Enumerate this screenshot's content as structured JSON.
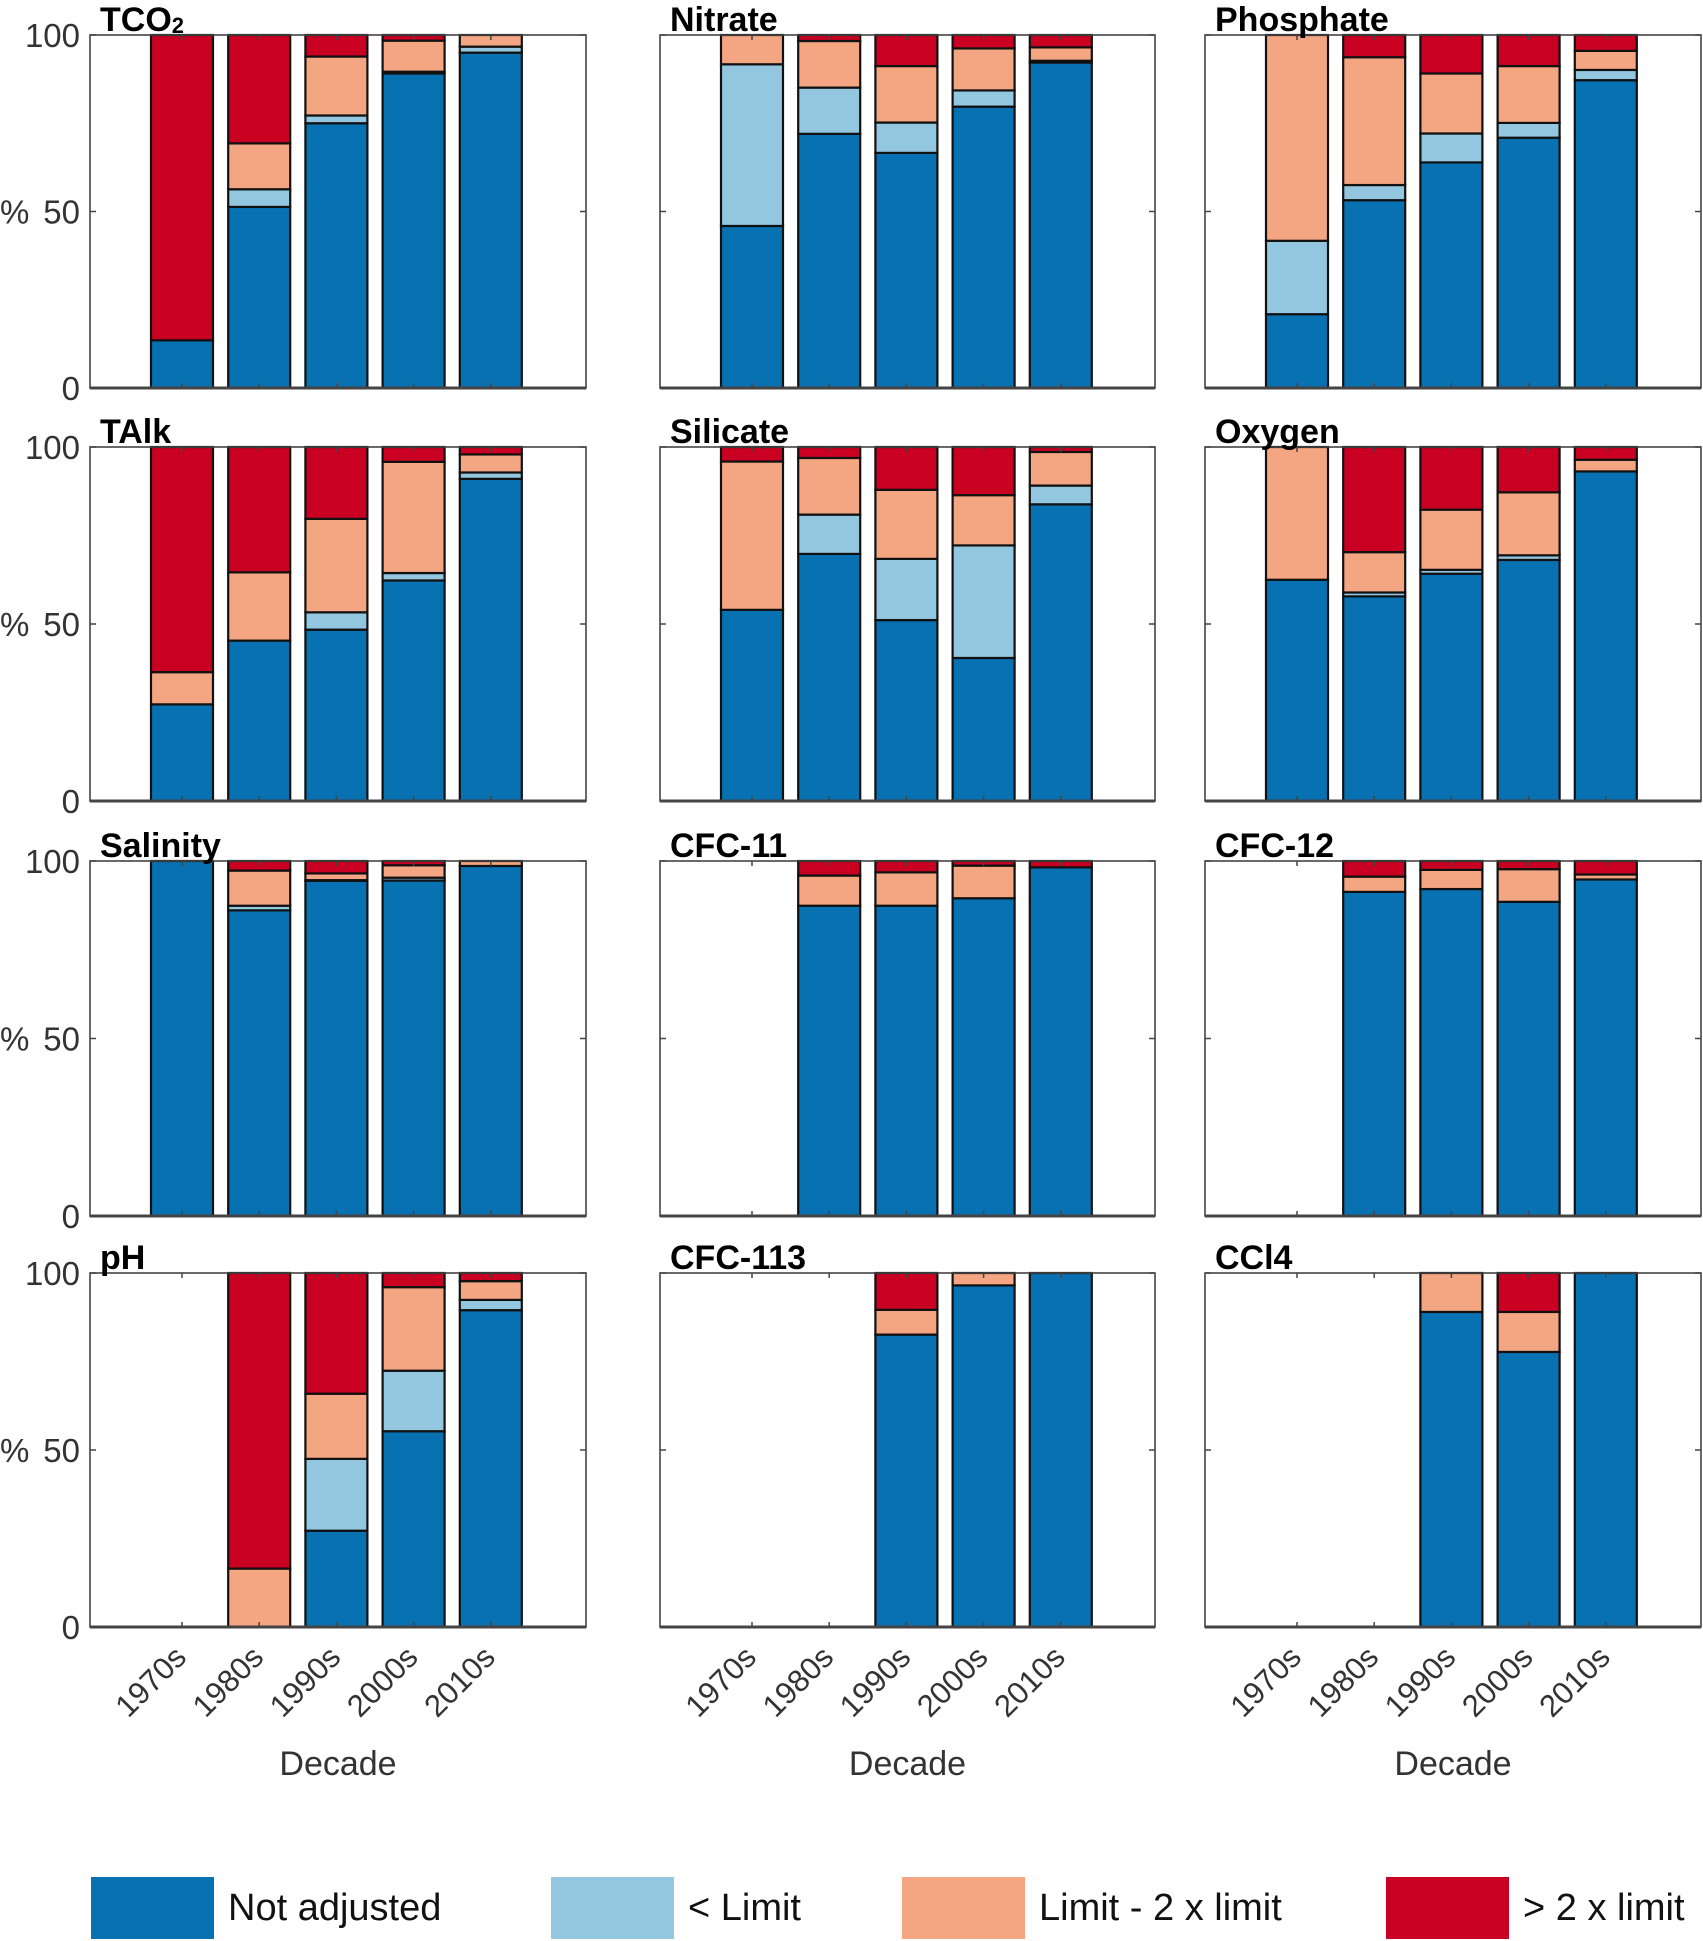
{
  "chart_data": {
    "type": "bar",
    "stacked": true,
    "layout": "4x3 small multiples",
    "categories": [
      "1970s",
      "1980s",
      "1990s",
      "2000s",
      "2010s"
    ],
    "xlabel": "Decade",
    "ylabel": "%",
    "ylim": [
      0,
      100
    ],
    "yticks": [
      0,
      50,
      100
    ],
    "grid": false,
    "legend_position": "bottom",
    "series_names": [
      "Not adjusted",
      "< Limit",
      "Limit - 2 x limit",
      "> 2 x limit"
    ],
    "series_colors": [
      "#0771b2",
      "#93c6df",
      "#f4a683",
      "#c90021"
    ],
    "panels": [
      {
        "title": "TCO",
        "title_sub": "2",
        "values": [
          [
            13.5,
            0,
            0,
            86.5
          ],
          [
            51.3,
            5.0,
            13.0,
            30.7
          ],
          [
            75.0,
            2.2,
            16.7,
            6.1
          ],
          [
            89.1,
            0.5,
            8.8,
            1.6
          ],
          [
            95.0,
            1.7,
            3.3,
            0
          ]
        ]
      },
      {
        "title": "Nitrate",
        "title_sub": "",
        "values": [
          [
            45.9,
            45.8,
            8.3,
            0
          ],
          [
            72.0,
            13.1,
            13.2,
            1.7
          ],
          [
            66.6,
            8.6,
            16.0,
            8.8
          ],
          [
            79.7,
            4.6,
            11.9,
            3.8
          ],
          [
            92.2,
            0.5,
            3.8,
            3.5
          ]
        ]
      },
      {
        "title": "Phosphate",
        "title_sub": "",
        "values": [
          [
            20.9,
            20.8,
            58.3,
            0
          ],
          [
            53.2,
            4.3,
            36.2,
            6.3
          ],
          [
            63.9,
            8.2,
            17.0,
            10.9
          ],
          [
            70.9,
            4.2,
            16.1,
            8.8
          ],
          [
            87.2,
            2.9,
            5.4,
            4.5
          ]
        ]
      },
      {
        "title": "TAlk",
        "title_sub": "",
        "values": [
          [
            27.3,
            0,
            9.1,
            63.6
          ],
          [
            45.3,
            0,
            19.3,
            35.4
          ],
          [
            48.4,
            4.9,
            26.4,
            20.3
          ],
          [
            62.3,
            2.1,
            31.4,
            4.2
          ],
          [
            91.0,
            1.8,
            5.1,
            2.1
          ]
        ]
      },
      {
        "title": "Silicate",
        "title_sub": "",
        "values": [
          [
            54.0,
            0,
            41.9,
            4.1
          ],
          [
            69.8,
            11.1,
            16.0,
            3.1
          ],
          [
            51.1,
            17.3,
            19.5,
            12.1
          ],
          [
            40.4,
            31.8,
            14.2,
            13.6
          ],
          [
            83.8,
            5.3,
            9.5,
            1.4
          ]
        ]
      },
      {
        "title": "Oxygen",
        "title_sub": "",
        "values": [
          [
            62.5,
            0,
            37.5,
            0
          ],
          [
            57.8,
            1.1,
            11.4,
            29.7
          ],
          [
            64.2,
            1.1,
            17.0,
            17.7
          ],
          [
            68.1,
            1.3,
            17.8,
            12.8
          ],
          [
            93.1,
            0,
            3.3,
            3.6
          ]
        ]
      },
      {
        "title": "Salinity",
        "title_sub": "",
        "values": [
          [
            100,
            0,
            0,
            0
          ],
          [
            86.1,
            1.3,
            9.9,
            2.7
          ],
          [
            94.4,
            0.2,
            1.9,
            3.5
          ],
          [
            94.5,
            0.8,
            3.5,
            1.2
          ],
          [
            98.6,
            0,
            1.4,
            0
          ]
        ]
      },
      {
        "title": "CFC-11",
        "title_sub": "",
        "values": [
          [
            0,
            0,
            0,
            0
          ],
          [
            87.4,
            0,
            8.5,
            4.1
          ],
          [
            87.4,
            0,
            9.4,
            3.2
          ],
          [
            89.5,
            0,
            9.2,
            1.3
          ],
          [
            98.2,
            0,
            0,
            1.8
          ]
        ]
      },
      {
        "title": "CFC-12",
        "title_sub": "",
        "values": [
          [
            0,
            0,
            0,
            0
          ],
          [
            91.3,
            0,
            4.3,
            4.4
          ],
          [
            92.1,
            0,
            5.4,
            2.5
          ],
          [
            88.5,
            0,
            9.2,
            2.3
          ],
          [
            94.8,
            0,
            1.4,
            3.8
          ]
        ]
      },
      {
        "title": "pH",
        "title_sub": "",
        "values": [
          [
            0,
            0,
            0,
            0
          ],
          [
            0,
            0,
            16.5,
            83.5
          ],
          [
            27.2,
            20.3,
            18.4,
            34.1
          ],
          [
            55.3,
            17.1,
            23.6,
            4.0
          ],
          [
            89.5,
            2.9,
            5.3,
            2.3
          ]
        ]
      },
      {
        "title": "CFC-113",
        "title_sub": "",
        "values": [
          [
            0,
            0,
            0,
            0
          ],
          [
            0,
            0,
            0,
            0
          ],
          [
            82.6,
            0,
            7.0,
            10.4
          ],
          [
            96.5,
            0,
            3.5,
            0
          ],
          [
            100,
            0,
            0,
            0
          ]
        ]
      },
      {
        "title": "CCl4",
        "title_sub": "",
        "values": [
          [
            0,
            0,
            0,
            0
          ],
          [
            0,
            0,
            0,
            0
          ],
          [
            89.0,
            0,
            11.0,
            0
          ],
          [
            77.7,
            0,
            11.3,
            11.0
          ],
          [
            100,
            0,
            0,
            0
          ]
        ]
      }
    ]
  },
  "legend": {
    "items": [
      {
        "label": "Not adjusted",
        "color": "#0771b2"
      },
      {
        "label": "< Limit",
        "color": "#93c6df"
      },
      {
        "label": "Limit - 2 x limit",
        "color": "#f4a683"
      },
      {
        "label": "> 2 x limit",
        "color": "#c90021"
      }
    ]
  }
}
